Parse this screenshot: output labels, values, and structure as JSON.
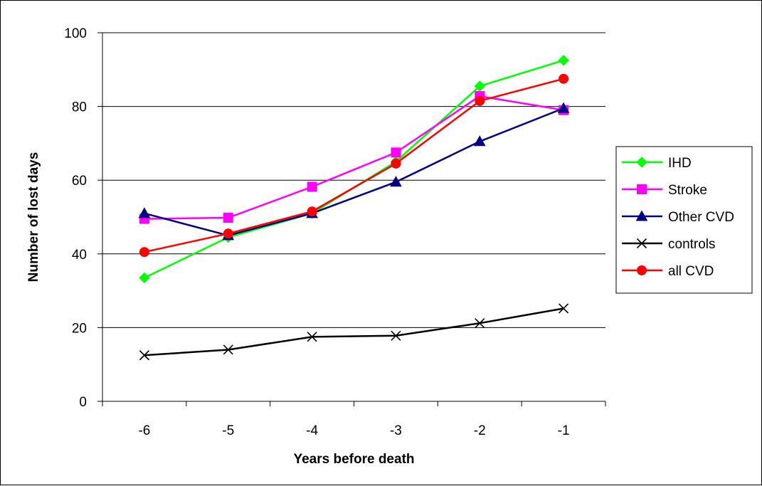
{
  "chart_data": {
    "type": "line",
    "title": "",
    "xlabel": "Years before death",
    "ylabel": "Number of lost days",
    "categories": [
      "-6",
      "-5",
      "-4",
      "-3",
      "-2",
      "-1"
    ],
    "ylim": [
      0,
      100
    ],
    "yticks": [
      0,
      20,
      40,
      60,
      80,
      100
    ],
    "grid": "horizontal",
    "legend_position": "right",
    "series": [
      {
        "name": "IHD",
        "color": "#00ff00",
        "marker": "diamond",
        "values": [
          33.5,
          44.5,
          51,
          65,
          85.5,
          92.5
        ]
      },
      {
        "name": "Stroke",
        "color": "#ff00ff",
        "marker": "square",
        "values": [
          49.5,
          49.8,
          58.2,
          67.5,
          82.8,
          79
        ]
      },
      {
        "name": "Other CVD",
        "color": "#000080",
        "marker": "triangle",
        "values": [
          51,
          45,
          51,
          59.5,
          70.5,
          79.5
        ]
      },
      {
        "name": "controls",
        "color": "#000000",
        "marker": "x",
        "values": [
          12.5,
          14,
          17.5,
          17.8,
          21.2,
          25.2
        ]
      },
      {
        "name": "all CVD",
        "color": "#ff0000",
        "marker": "circle",
        "values": [
          40.5,
          45.5,
          51.5,
          64.5,
          81.5,
          87.5
        ]
      }
    ]
  }
}
